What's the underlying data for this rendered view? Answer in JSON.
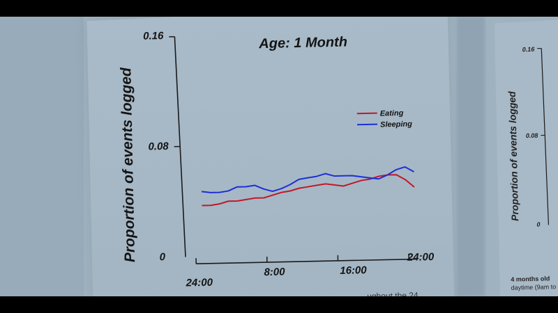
{
  "chart_data": [
    {
      "type": "line",
      "title": "Age: 1 Month",
      "xlabel": "",
      "ylabel": "Proportion of events logged",
      "ylim": [
        0,
        0.16
      ],
      "xlim": [
        0,
        24
      ],
      "yticks": [
        "0",
        "0.08",
        "0.16"
      ],
      "xticks": [
        "24:00",
        "8:00",
        "16:00",
        "24:00"
      ],
      "legend_position": "right",
      "series": [
        {
          "name": "Eating",
          "color": "#c0182a",
          "x": [
            0,
            1,
            2,
            3,
            4,
            5,
            6,
            7,
            8,
            9,
            10,
            11,
            12,
            13,
            14,
            15,
            16,
            17,
            18,
            19,
            20,
            21,
            22,
            23,
            24
          ],
          "values": [
            0.027,
            0.027,
            0.028,
            0.03,
            0.03,
            0.031,
            0.032,
            0.032,
            0.034,
            0.036,
            0.037,
            0.039,
            0.04,
            0.041,
            0.042,
            0.041,
            0.04,
            0.042,
            0.044,
            0.045,
            0.047,
            0.048,
            0.048,
            0.044,
            0.038
          ]
        },
        {
          "name": "Sleeping",
          "color": "#1d2fd6",
          "x": [
            0,
            1,
            2,
            3,
            4,
            5,
            6,
            7,
            8,
            9,
            10,
            11,
            12,
            13,
            14,
            15,
            16,
            17,
            18,
            19,
            20,
            21,
            22,
            23,
            24
          ],
          "values": [
            0.038,
            0.037,
            0.037,
            0.038,
            0.041,
            0.041,
            0.042,
            0.039,
            0.037,
            0.039,
            0.042,
            0.046,
            0.047,
            0.048,
            0.05,
            0.048,
            0.048,
            0.048,
            0.047,
            0.046,
            0.045,
            0.048,
            0.052,
            0.054,
            0.05
          ]
        }
      ]
    },
    {
      "type": "line",
      "title": "",
      "ylabel": "Proportion of events logged",
      "ylim": [
        0,
        0.16
      ],
      "yticks": [
        "0",
        "0.08",
        "0.16"
      ]
    }
  ],
  "captions": {
    "main_partial": "ughout the 24",
    "side_line1": "4 months old",
    "side_line2": "daytime (9am to"
  }
}
